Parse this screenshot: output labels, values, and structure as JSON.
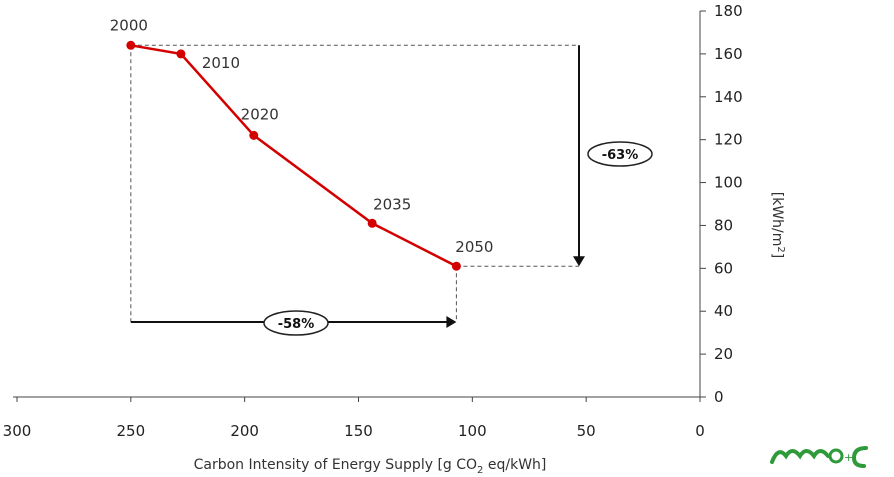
{
  "chart_data": {
    "type": "line",
    "xlabel_parts": [
      "Carbon Intensity of Energy Supply  [g CO",
      "2",
      " eq/kWh]"
    ],
    "ylabel_parts": [
      "[kWh/m",
      "2",
      "]"
    ],
    "xlim": [
      300,
      0
    ],
    "ylim": [
      0,
      180
    ],
    "x_ticks": [
      300,
      250,
      200,
      150,
      100,
      50,
      0
    ],
    "y_ticks": [
      0,
      20,
      40,
      60,
      80,
      100,
      120,
      140,
      160,
      180
    ],
    "y_axis_side": "right",
    "line_color": "#d40000",
    "points": [
      {
        "label": "2000",
        "x": 250,
        "y": 164
      },
      {
        "label": "2010",
        "x": 228,
        "y": 160
      },
      {
        "label": "2020",
        "x": 196,
        "y": 122
      },
      {
        "label": "2035",
        "x": 144,
        "y": 81
      },
      {
        "label": "2050",
        "x": 107,
        "y": 61
      }
    ],
    "annotations": [
      {
        "text": "-63%",
        "direction": "vertical"
      },
      {
        "text": "-58%",
        "direction": "horizontal"
      }
    ]
  }
}
